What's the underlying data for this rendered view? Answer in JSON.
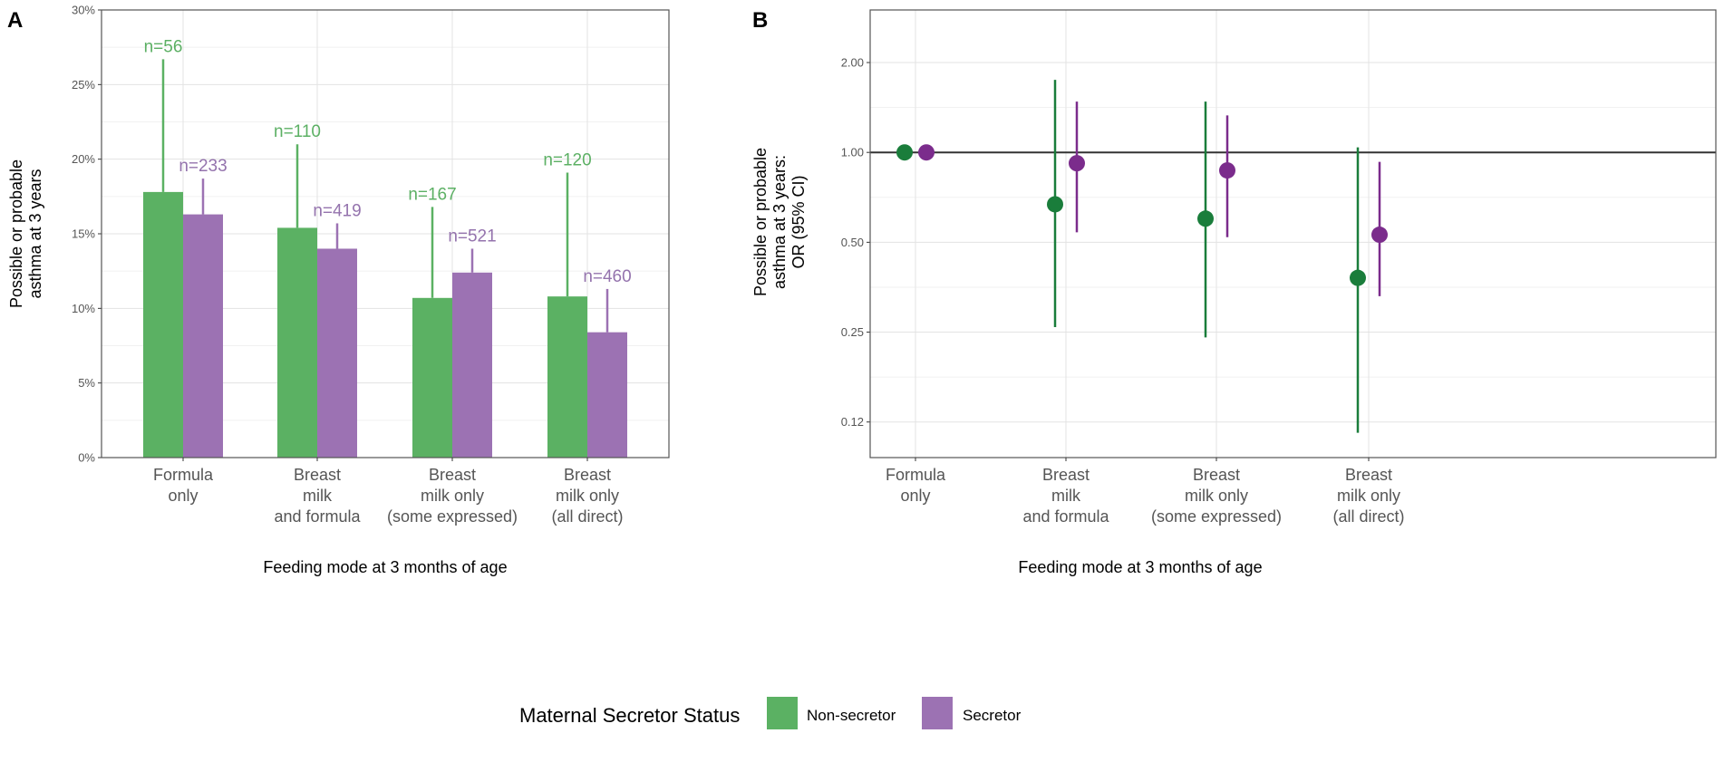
{
  "colors": {
    "non_secretor_bar": "#5bb163",
    "secretor_bar": "#9c72b3",
    "non_secretor_point": "#1a7d3b",
    "secretor_point": "#7b2c8c",
    "label_non_secretor": "#5cb064",
    "label_secretor": "#9473ad"
  },
  "chart_data": [
    {
      "panel": "A",
      "type": "bar",
      "xlabel": "Feeding mode at 3 months of age",
      "ylabel": [
        "Possible or probable",
        "asthma at 3 years"
      ],
      "ylim": [
        0,
        30
      ],
      "y_ticks": [
        0,
        5,
        10,
        15,
        20,
        25,
        30
      ],
      "y_tick_labels": [
        "0%",
        "5%",
        "10%",
        "15%",
        "20%",
        "25%",
        "30%"
      ],
      "categories": [
        [
          "Formula",
          "only"
        ],
        [
          "Breast",
          "milk",
          "and formula"
        ],
        [
          "Breast",
          "milk only",
          "(some expressed)"
        ],
        [
          "Breast",
          "milk only",
          "(all direct)"
        ]
      ],
      "series": [
        {
          "name": "Non-secretor",
          "values": [
            17.8,
            15.4,
            10.7,
            10.8
          ],
          "upper": [
            26.7,
            21.0,
            16.8,
            19.1
          ],
          "n_labels": [
            "n=56",
            "n=110",
            "n=167",
            "n=120"
          ]
        },
        {
          "name": "Secretor",
          "values": [
            16.3,
            14.0,
            12.4,
            8.4
          ],
          "upper": [
            18.7,
            15.7,
            14.0,
            11.3
          ],
          "n_labels": [
            "n=233",
            "n=419",
            "n=521",
            "n=460"
          ]
        }
      ]
    },
    {
      "panel": "B",
      "type": "scatter",
      "xlabel": "Feeding mode at 3 months of age",
      "ylabel": [
        "Possible or probable",
        "asthma at 3 years:",
        "OR (95% CI)"
      ],
      "y_scale": "log2",
      "ylim": [
        0.095,
        3.0
      ],
      "y_ticks": [
        0.125,
        0.25,
        0.5,
        1.0,
        2.0
      ],
      "y_tick_labels": [
        "0.12",
        "0.25",
        "0.50",
        "1.00",
        "2.00"
      ],
      "reference_line": 1.0,
      "categories": [
        [
          "Formula",
          "only"
        ],
        [
          "Breast",
          "milk",
          "and formula"
        ],
        [
          "Breast",
          "milk only",
          "(some expressed)"
        ],
        [
          "Breast",
          "milk only",
          "(all direct)"
        ]
      ],
      "series": [
        {
          "name": "Non-secretor",
          "values": [
            1.0,
            0.67,
            0.6,
            0.38
          ],
          "lower": [
            null,
            0.26,
            0.24,
            0.115
          ],
          "upper": [
            null,
            1.75,
            1.48,
            1.04
          ]
        },
        {
          "name": "Secretor",
          "values": [
            1.0,
            0.92,
            0.87,
            0.53
          ],
          "lower": [
            null,
            0.54,
            0.52,
            0.33
          ],
          "upper": [
            null,
            1.48,
            1.33,
            0.93
          ]
        }
      ]
    }
  ],
  "legend": {
    "title": "Maternal Secretor Status",
    "items": [
      "Non-secretor",
      "Secretor"
    ]
  }
}
